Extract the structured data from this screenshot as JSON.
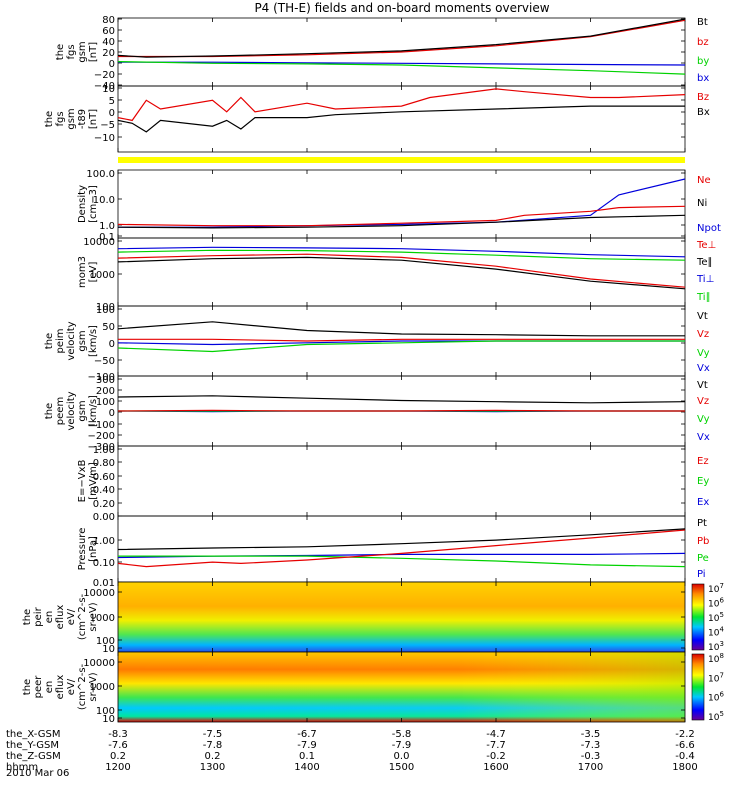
{
  "title": "P4 (TH-E) fields and on-board moments overview",
  "colors": {
    "black": "#000000",
    "red": "#e60000",
    "green": "#00d200",
    "blue": "#0000dc",
    "yellow": "#ffff00"
  },
  "footer": {
    "rows": [
      {
        "label": "the_X-GSM",
        "values": [
          "-8.3",
          "-7.5",
          "-6.7",
          "-5.8",
          "-4.7",
          "-3.5",
          "-2.2"
        ]
      },
      {
        "label": "the_Y-GSM",
        "values": [
          "-7.6",
          "-7.8",
          "-7.9",
          "-7.9",
          "-7.7",
          "-7.3",
          "-6.6"
        ]
      },
      {
        "label": "the_Z-GSM",
        "values": [
          "0.2",
          "0.2",
          "0.1",
          "0.0",
          "-0.2",
          "-0.3",
          "-0.4"
        ]
      },
      {
        "label": "hhmm",
        "values": [
          "1200",
          "1300",
          "1400",
          "1500",
          "1600",
          "1700",
          "1800"
        ]
      }
    ],
    "date": "2010 Mar 06"
  },
  "chart_data": [
    {
      "type": "line",
      "ylabel": [
        "the",
        "fgs",
        "gsm",
        "[nT]"
      ],
      "ylim": [
        -40,
        80
      ],
      "yticks": [
        "80",
        "60",
        "40",
        "20",
        "0",
        "−20",
        "−40"
      ],
      "series": [
        {
          "name": "Bt",
          "color": "black",
          "x": [
            1200,
            1230,
            1300,
            1330,
            1400,
            1500,
            1600,
            1700,
            1800
          ],
          "y": [
            14,
            11,
            13,
            14,
            17,
            22,
            33,
            48,
            78
          ]
        },
        {
          "name": "bz",
          "color": "red",
          "x": [
            1200,
            1300,
            1400,
            1500,
            1600,
            1700,
            1800
          ],
          "y": [
            12,
            12,
            15,
            20,
            31,
            47,
            76
          ]
        },
        {
          "name": "by",
          "color": "green",
          "x": [
            1200,
            1300,
            1400,
            1500,
            1600,
            1700,
            1800
          ],
          "y": [
            3,
            0,
            -1,
            -3,
            -8,
            -13,
            -19
          ]
        },
        {
          "name": "bx",
          "color": "blue",
          "x": [
            1200,
            1300,
            1400,
            1500,
            1600,
            1700,
            1800
          ],
          "y": [
            2,
            2,
            1,
            0,
            -1,
            -2,
            -3
          ]
        }
      ]
    },
    {
      "type": "line",
      "ylabel": [
        "the",
        "fgs",
        "gsm",
        "-t89",
        "[nT]"
      ],
      "ylim": [
        -13,
        10
      ],
      "yticks": [
        "10",
        "5",
        "0",
        "−5",
        "−10"
      ],
      "series": [
        {
          "name": "Bz",
          "color": "red",
          "x": [
            1200,
            1215,
            1230,
            1245,
            1300,
            1315,
            1330,
            1345,
            1400,
            1430,
            1500,
            1530,
            1600,
            1630,
            1700,
            1730,
            1800
          ],
          "y": [
            -1,
            -2,
            5,
            2,
            5,
            1,
            6,
            1,
            4,
            2,
            3,
            6,
            9,
            8,
            6,
            6,
            7
          ]
        },
        {
          "name": "Bx",
          "color": "black",
          "x": [
            1200,
            1215,
            1230,
            1245,
            1300,
            1315,
            1330,
            1345,
            1400,
            1430,
            1500,
            1600,
            1700,
            1800
          ],
          "y": [
            -2,
            -3,
            -6,
            -2,
            -4,
            -2,
            -5,
            -1,
            -1,
            0,
            1,
            2,
            3,
            3
          ]
        }
      ]
    },
    {
      "type": "line",
      "ylabel": [
        "Density",
        "[cm−3]"
      ],
      "yscale": "log",
      "ylim": [
        0.1,
        100
      ],
      "yticks": [
        "100.0",
        "10.0",
        "1.0",
        "0.1"
      ],
      "series": [
        {
          "name": "Ne",
          "color": "red",
          "x": [
            1200,
            1300,
            1400,
            1500,
            1600,
            1630,
            1700,
            1730,
            1800
          ],
          "y": [
            0.4,
            0.35,
            0.35,
            0.45,
            0.6,
            1.0,
            1.5,
            2.2,
            2.5
          ]
        },
        {
          "name": "Ni",
          "color": "black",
          "x": [
            1200,
            1300,
            1400,
            1500,
            1600,
            1700,
            1800
          ],
          "y": [
            0.3,
            0.28,
            0.3,
            0.35,
            0.5,
            0.8,
            1.0
          ]
        },
        {
          "name": "Npot",
          "color": "blue",
          "x": [
            1200,
            1300,
            1400,
            1500,
            1600,
            1700,
            1730,
            1800
          ],
          "y": [
            0.3,
            0.3,
            0.35,
            0.4,
            0.5,
            1.0,
            8,
            40
          ]
        }
      ]
    },
    {
      "type": "line",
      "ylabel": [
        "mom3",
        "[eV]"
      ],
      "yscale": "log",
      "ylim": [
        30,
        10000
      ],
      "yticks": [
        "10000",
        "1000",
        "100"
      ],
      "series": [
        {
          "name": "Te⊥",
          "color": "red",
          "x": [
            1200,
            1300,
            1400,
            1500,
            1600,
            1700,
            1800
          ],
          "y": [
            1800,
            2200,
            2500,
            1900,
            900,
            300,
            150
          ]
        },
        {
          "name": "Te∥",
          "color": "black",
          "x": [
            1200,
            1300,
            1400,
            1500,
            1600,
            1700,
            1800
          ],
          "y": [
            1300,
            1700,
            1900,
            1500,
            700,
            250,
            130
          ]
        },
        {
          "name": "Ti⊥",
          "color": "blue",
          "x": [
            1200,
            1300,
            1400,
            1500,
            1600,
            1700,
            1800
          ],
          "y": [
            4000,
            4500,
            4300,
            4000,
            3200,
            2400,
            2000
          ]
        },
        {
          "name": "Ti∥",
          "color": "green",
          "x": [
            1200,
            1300,
            1400,
            1500,
            1600,
            1700,
            1800
          ],
          "y": [
            3000,
            3500,
            3400,
            3000,
            2300,
            1700,
            1500
          ]
        }
      ]
    },
    {
      "type": "line",
      "ylabel": [
        "the",
        "peim",
        "velocity",
        "gsm",
        "[km/s]"
      ],
      "ylim": [
        -100,
        100
      ],
      "yticks": [
        "100",
        "50",
        "0",
        "−50",
        "−100"
      ],
      "series": [
        {
          "name": "Vt",
          "color": "black",
          "x": [
            1200,
            1300,
            1400,
            1500,
            1600,
            1700,
            1800
          ],
          "y": [
            35,
            55,
            30,
            20,
            18,
            15,
            15
          ]
        },
        {
          "name": "Vz",
          "color": "red",
          "x": [
            1200,
            1300,
            1400,
            1500,
            1600,
            1700,
            1800
          ],
          "y": [
            5,
            5,
            0,
            5,
            5,
            5,
            5
          ]
        },
        {
          "name": "Vy",
          "color": "green",
          "x": [
            1200,
            1300,
            1400,
            1500,
            1600,
            1700,
            1800
          ],
          "y": [
            -20,
            -30,
            -10,
            -5,
            0,
            0,
            0
          ]
        },
        {
          "name": "Vx",
          "color": "blue",
          "x": [
            1200,
            1300,
            1400,
            1500,
            1600,
            1700,
            1800
          ],
          "y": [
            -5,
            -10,
            -5,
            0,
            0,
            0,
            0
          ]
        }
      ]
    },
    {
      "type": "line",
      "ylabel": [
        "the",
        "peem",
        "velocity",
        "gsm",
        "[km/s]"
      ],
      "ylim": [
        -300,
        300
      ],
      "yticks": [
        "300",
        "200",
        "100",
        "0",
        "−100",
        "−200",
        "−300"
      ],
      "series": [
        {
          "name": "Vt",
          "color": "black",
          "x": [
            1200,
            1300,
            1400,
            1500,
            1600,
            1700,
            1800
          ],
          "y": [
            120,
            130,
            110,
            90,
            80,
            70,
            80
          ]
        },
        {
          "name": "Vz",
          "color": "red",
          "x": [
            1200,
            1300,
            1400,
            1500,
            1600,
            1700,
            1800
          ],
          "y": [
            0,
            5,
            0,
            0,
            5,
            0,
            0
          ]
        },
        {
          "name": "Vy",
          "color": "green",
          "x": [
            1200,
            1300,
            1400,
            1500,
            1600,
            1700,
            1800
          ],
          "y": [
            0,
            0,
            0,
            0,
            0,
            0,
            0
          ]
        },
        {
          "name": "Vx",
          "color": "blue",
          "x": [
            1200,
            1300,
            1400,
            1500,
            1600,
            1700,
            1800
          ],
          "y": [
            0,
            -5,
            0,
            0,
            -5,
            0,
            0
          ]
        }
      ]
    },
    {
      "type": "line",
      "ylabel": [
        "E=−VxB",
        "[mV/m]"
      ],
      "ylim": [
        0,
        1
      ],
      "yticks": [
        "1.00",
        "0.80",
        "0.60",
        "0.40",
        "0.20",
        "0.00"
      ],
      "series": [
        {
          "name": "Ez",
          "color": "red",
          "x": [],
          "y": []
        },
        {
          "name": "Ey",
          "color": "green",
          "x": [],
          "y": []
        },
        {
          "name": "Ex",
          "color": "blue",
          "x": [],
          "y": []
        }
      ]
    },
    {
      "type": "line",
      "ylabel": [
        "Pressure",
        "[nPa]"
      ],
      "yscale": "log",
      "ylim": [
        0.01,
        10
      ],
      "yticks": [
        "1.00",
        "0.10",
        "0.01"
      ],
      "series": [
        {
          "name": "Pt",
          "color": "black",
          "x": [
            1200,
            1300,
            1400,
            1500,
            1600,
            1700,
            1800
          ],
          "y": [
            0.3,
            0.35,
            0.4,
            0.55,
            0.8,
            1.4,
            2.6
          ]
        },
        {
          "name": "Pb",
          "color": "red",
          "x": [
            1200,
            1230,
            1300,
            1330,
            1400,
            1500,
            1600,
            1700,
            1800
          ],
          "y": [
            0.07,
            0.05,
            0.08,
            0.07,
            0.1,
            0.2,
            0.45,
            1.0,
            2.3
          ]
        },
        {
          "name": "Pe",
          "color": "green",
          "x": [
            1200,
            1300,
            1400,
            1500,
            1600,
            1700,
            1800
          ],
          "y": [
            0.15,
            0.15,
            0.15,
            0.12,
            0.09,
            0.06,
            0.05
          ]
        },
        {
          "name": "Pi",
          "color": "blue",
          "x": [
            1200,
            1300,
            1400,
            1500,
            1600,
            1700,
            1800
          ],
          "y": [
            0.13,
            0.15,
            0.16,
            0.18,
            0.18,
            0.18,
            0.2
          ]
        }
      ]
    },
    {
      "type": "heatmap",
      "ylabel": [
        "the",
        "peir",
        "en",
        "eflux",
        "eV/",
        "(cm^2-s-",
        "sr-eV)"
      ],
      "yticks": [
        "10000",
        "1000",
        "100",
        "10"
      ],
      "colorbar_ticks": [
        "10^7",
        "10^6",
        "10^5",
        "10^4",
        "10^3"
      ]
    },
    {
      "type": "heatmap",
      "ylabel": [
        "the",
        "peer",
        "en",
        "eflux",
        "eV/",
        "(cm^2-s-",
        "sr-eV)"
      ],
      "yticks": [
        "10000",
        "1000",
        "100",
        "10"
      ],
      "colorbar_ticks": [
        "10^8",
        "10^7",
        "10^6",
        "10^5"
      ]
    }
  ]
}
